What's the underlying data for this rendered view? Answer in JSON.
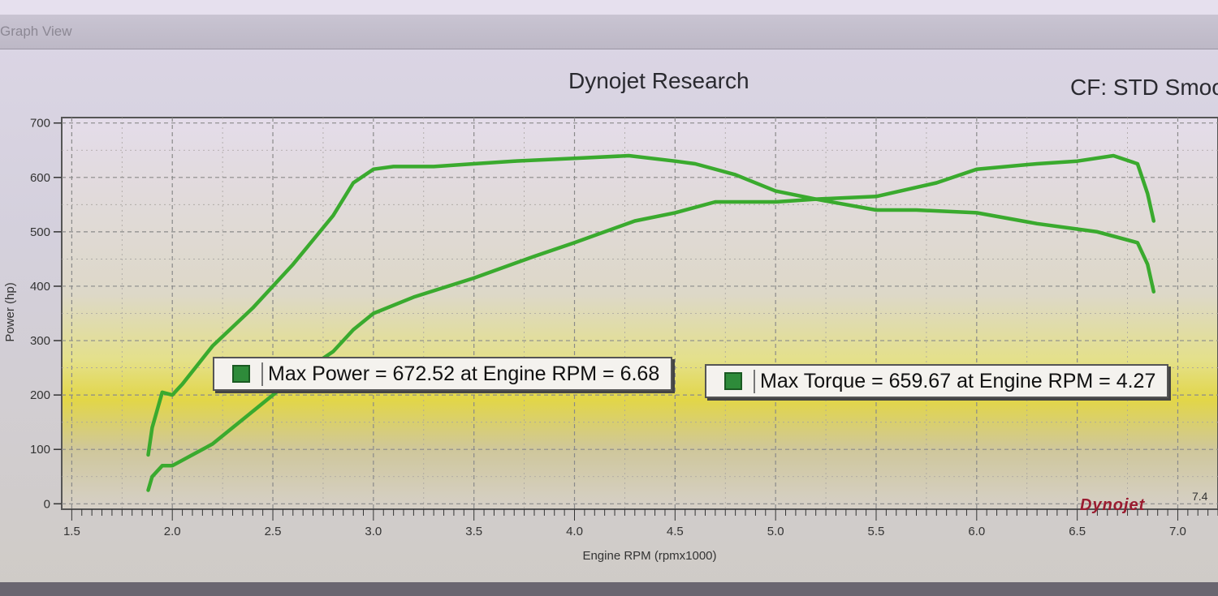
{
  "window": {
    "title": "Graph View"
  },
  "header": {
    "title": "Dynojet Research",
    "correction": "CF: STD Smoo"
  },
  "legend": {
    "power": "Max Power = 672.52 at Engine RPM = 6.68",
    "torque": "Max Torque = 659.67 at Engine RPM = 4.27"
  },
  "logo": {
    "text": "Dynojet",
    "version": "7.4"
  },
  "colors": {
    "series": "#3aaa2e",
    "grid": "#8a8a8a"
  },
  "chart_data": {
    "type": "line",
    "xlabel": "Engine RPM (rpmx1000)",
    "ylabel": "Power (hp)",
    "xlim": [
      1.45,
      7.2
    ],
    "ylim": [
      -10,
      710
    ],
    "xticks": [
      "1.5",
      "2.0",
      "2.5",
      "3.0",
      "3.5",
      "4.0",
      "4.5",
      "5.0",
      "5.5",
      "6.0",
      "6.5",
      "7.0"
    ],
    "yticks": [
      "0",
      "100",
      "200",
      "300",
      "400",
      "500",
      "600",
      "700"
    ],
    "grid": true,
    "series": [
      {
        "name": "Torque",
        "x": [
          1.88,
          1.9,
          1.95,
          2.0,
          2.05,
          2.2,
          2.4,
          2.6,
          2.8,
          2.9,
          3.0,
          3.1,
          3.3,
          3.5,
          3.7,
          4.0,
          4.27,
          4.5,
          4.6,
          4.8,
          5.0,
          5.2,
          5.5,
          5.7,
          6.0,
          6.3,
          6.6,
          6.8,
          6.85,
          6.88
        ],
        "y": [
          90,
          140,
          205,
          200,
          220,
          290,
          360,
          440,
          530,
          590,
          615,
          620,
          620,
          625,
          630,
          635,
          640,
          630,
          625,
          605,
          575,
          560,
          540,
          540,
          535,
          515,
          500,
          480,
          440,
          390
        ]
      },
      {
        "name": "Power",
        "x": [
          1.88,
          1.9,
          1.95,
          2.0,
          2.1,
          2.2,
          2.4,
          2.6,
          2.8,
          2.9,
          3.0,
          3.2,
          3.5,
          3.8,
          4.0,
          4.3,
          4.5,
          4.7,
          5.0,
          5.2,
          5.5,
          5.8,
          6.0,
          6.3,
          6.5,
          6.68,
          6.8,
          6.85,
          6.88
        ],
        "y": [
          25,
          50,
          70,
          70,
          90,
          110,
          170,
          230,
          280,
          320,
          350,
          380,
          415,
          455,
          480,
          520,
          535,
          555,
          555,
          560,
          565,
          590,
          615,
          625,
          630,
          640,
          625,
          570,
          520
        ]
      }
    ]
  }
}
